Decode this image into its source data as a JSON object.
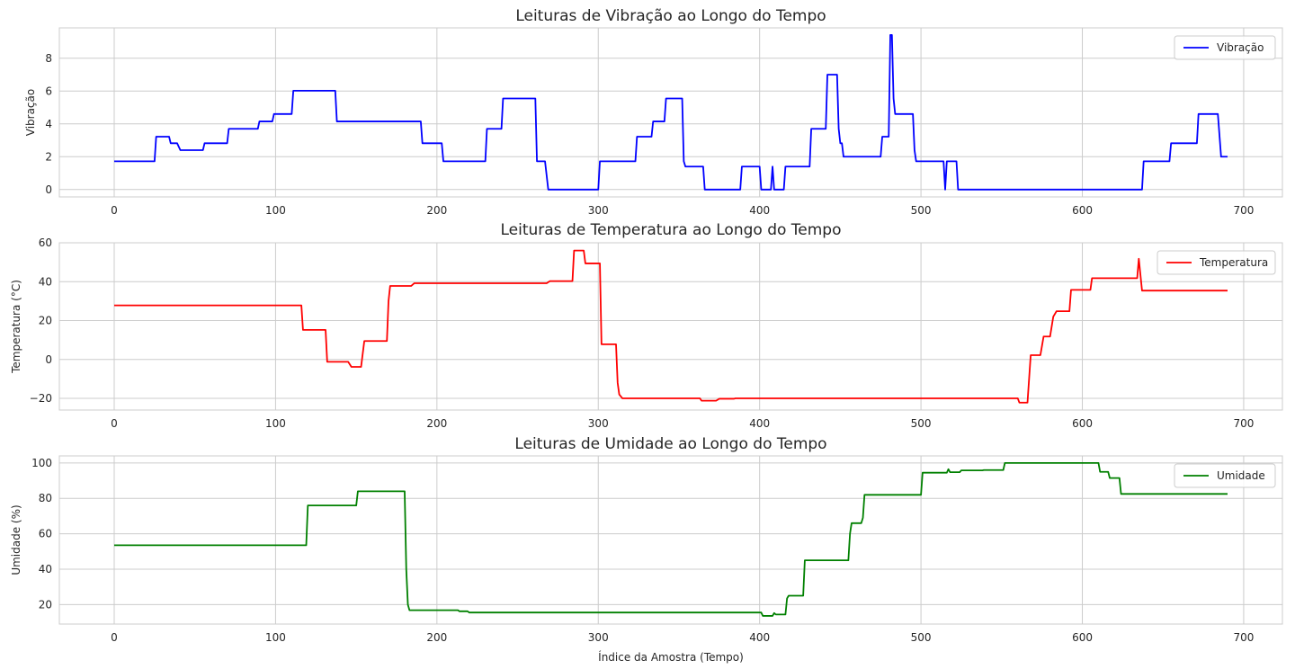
{
  "chart_data": [
    {
      "type": "line",
      "title": "Leituras de Vibração ao Longo do Tempo",
      "xlabel": "",
      "ylabel": "Vibração",
      "xlim": [
        -34,
        724
      ],
      "ylim": [
        -0.45,
        9.85
      ],
      "xticks": [
        0,
        100,
        200,
        300,
        400,
        500,
        600,
        700
      ],
      "yticks": [
        0,
        2,
        4,
        6,
        8
      ],
      "grid": true,
      "legend_position": "top-right",
      "series": [
        {
          "name": "Vibração",
          "color": "#0000ff",
          "points": [
            [
              0,
              1.72
            ],
            [
              25,
              1.72
            ],
            [
              26,
              3.22
            ],
            [
              34,
              3.22
            ],
            [
              35,
              2.82
            ],
            [
              39,
              2.82
            ],
            [
              41,
              2.4
            ],
            [
              55,
              2.4
            ],
            [
              56,
              2.82
            ],
            [
              70,
              2.82
            ],
            [
              71,
              3.7
            ],
            [
              89,
              3.7
            ],
            [
              90,
              4.15
            ],
            [
              98,
              4.15
            ],
            [
              99,
              4.6
            ],
            [
              110,
              4.6
            ],
            [
              111,
              6.02
            ],
            [
              137,
              6.02
            ],
            [
              138,
              4.15
            ],
            [
              190,
              4.15
            ],
            [
              191,
              2.82
            ],
            [
              203,
              2.82
            ],
            [
              204,
              1.72
            ],
            [
              230,
              1.72
            ],
            [
              231,
              3.7
            ],
            [
              240,
              3.7
            ],
            [
              241,
              5.55
            ],
            [
              261,
              5.55
            ],
            [
              262,
              1.72
            ],
            [
              267,
              1.72
            ],
            [
              269,
              0
            ],
            [
              300,
              0
            ],
            [
              301,
              1.72
            ],
            [
              323,
              1.72
            ],
            [
              324,
              3.22
            ],
            [
              333,
              3.22
            ],
            [
              334,
              4.15
            ],
            [
              341,
              4.15
            ],
            [
              342,
              5.55
            ],
            [
              352,
              5.55
            ],
            [
              353,
              1.72
            ],
            [
              354,
              1.4
            ],
            [
              365,
              1.4
            ],
            [
              366,
              0
            ],
            [
              388,
              0
            ],
            [
              389,
              1.4
            ],
            [
              400,
              1.4
            ],
            [
              401,
              0
            ],
            [
              407,
              0
            ],
            [
              408,
              1.4
            ],
            [
              409,
              0
            ],
            [
              415,
              0
            ],
            [
              416,
              1.4
            ],
            [
              431,
              1.4
            ],
            [
              432,
              3.7
            ],
            [
              441,
              3.7
            ],
            [
              442,
              7.0
            ],
            [
              448,
              7.0
            ],
            [
              449,
              3.7
            ],
            [
              450,
              2.82
            ],
            [
              451,
              2.82
            ],
            [
              452,
              2.0
            ],
            [
              475,
              2.0
            ],
            [
              476,
              3.22
            ],
            [
              480,
              3.22
            ],
            [
              481,
              9.42
            ],
            [
              482,
              9.42
            ],
            [
              483,
              5.55
            ],
            [
              484,
              4.6
            ],
            [
              495,
              4.6
            ],
            [
              496,
              2.4
            ],
            [
              497,
              1.72
            ],
            [
              514,
              1.72
            ],
            [
              515,
              0
            ],
            [
              516,
              1.72
            ],
            [
              522,
              1.72
            ],
            [
              523,
              0
            ],
            [
              637,
              0
            ],
            [
              638,
              1.72
            ],
            [
              654,
              1.72
            ],
            [
              655,
              2.82
            ],
            [
              671,
              2.82
            ],
            [
              672,
              4.6
            ],
            [
              684,
              4.6
            ],
            [
              686,
              2.0
            ],
            [
              690,
              2.0
            ]
          ]
        }
      ]
    },
    {
      "type": "line",
      "title": "Leituras de Temperatura ao Longo do Tempo",
      "xlabel": "",
      "ylabel": "Temperatura (°C)",
      "xlim": [
        -34,
        724
      ],
      "ylim": [
        -26,
        60
      ],
      "xticks": [
        0,
        100,
        200,
        300,
        400,
        500,
        600,
        700
      ],
      "yticks": [
        -20,
        0,
        20,
        40,
        60
      ],
      "grid": true,
      "legend_position": "top-right",
      "series": [
        {
          "name": "Temperatura",
          "color": "#ff0000",
          "points": [
            [
              0,
              27.8
            ],
            [
              116,
              27.8
            ],
            [
              117,
              15.2
            ],
            [
              131,
              15.2
            ],
            [
              132,
              -1.2
            ],
            [
              145,
              -1.2
            ],
            [
              147,
              -3.8
            ],
            [
              153,
              -3.8
            ],
            [
              155,
              9.5
            ],
            [
              169,
              9.5
            ],
            [
              170,
              30
            ],
            [
              171,
              37.8
            ],
            [
              184,
              37.8
            ],
            [
              186,
              39.2
            ],
            [
              268,
              39.2
            ],
            [
              270,
              40.3
            ],
            [
              284,
              40.3
            ],
            [
              285,
              56
            ],
            [
              291,
              56
            ],
            [
              292,
              49.4
            ],
            [
              301,
              49.4
            ],
            [
              302,
              7.8
            ],
            [
              311,
              7.8
            ],
            [
              312,
              -12
            ],
            [
              313,
              -18
            ],
            [
              315,
              -20
            ],
            [
              363,
              -20
            ],
            [
              364,
              -21.2
            ],
            [
              373,
              -21.2
            ],
            [
              375,
              -20.2
            ],
            [
              384,
              -20.2
            ],
            [
              385,
              -20
            ],
            [
              560,
              -20
            ],
            [
              561,
              -22.2
            ],
            [
              566,
              -22.2
            ],
            [
              568,
              2.2
            ],
            [
              574,
              2.2
            ],
            [
              576,
              11.8
            ],
            [
              580,
              11.8
            ],
            [
              582,
              22
            ],
            [
              584,
              24.8
            ],
            [
              592,
              24.8
            ],
            [
              593,
              35.8
            ],
            [
              605,
              35.8
            ],
            [
              606,
              41.8
            ],
            [
              634,
              41.8
            ],
            [
              635,
              51.8
            ],
            [
              637,
              35.4
            ],
            [
              690,
              35.4
            ]
          ]
        }
      ]
    },
    {
      "type": "line",
      "title": "Leituras de Umidade ao Longo do Tempo",
      "xlabel": "Índice da Amostra (Tempo)",
      "ylabel": "Umidade (%)",
      "xlim": [
        -34,
        724
      ],
      "ylim": [
        9,
        104
      ],
      "xticks": [
        0,
        100,
        200,
        300,
        400,
        500,
        600,
        700
      ],
      "yticks": [
        20,
        40,
        60,
        80,
        100
      ],
      "grid": true,
      "legend_position": "top-right",
      "series": [
        {
          "name": "Umidade",
          "color": "#008000",
          "points": [
            [
              0,
              53.5
            ],
            [
              119,
              53.5
            ],
            [
              120,
              76
            ],
            [
              150,
              76
            ],
            [
              151,
              84
            ],
            [
              180,
              84
            ],
            [
              181,
              40
            ],
            [
              182,
              20
            ],
            [
              183,
              16.8
            ],
            [
              213,
              16.8
            ],
            [
              214,
              16.2
            ],
            [
              219,
              16.2
            ],
            [
              220,
              15.5
            ],
            [
              401,
              15.5
            ],
            [
              402,
              13.6
            ],
            [
              408,
              13.6
            ],
            [
              409,
              15.2
            ],
            [
              410,
              14.4
            ],
            [
              416,
              14.4
            ],
            [
              417,
              23.5
            ],
            [
              418,
              25
            ],
            [
              427,
              25
            ],
            [
              428,
              45
            ],
            [
              455,
              45
            ],
            [
              456,
              60
            ],
            [
              457,
              66
            ],
            [
              463,
              66
            ],
            [
              464,
              69
            ],
            [
              465,
              82
            ],
            [
              500,
              82
            ],
            [
              501,
              94.5
            ],
            [
              516,
              94.5
            ],
            [
              517,
              96.5
            ],
            [
              518,
              94.8
            ],
            [
              524,
              94.8
            ],
            [
              525,
              95.8
            ],
            [
              538,
              95.8
            ],
            [
              539,
              96
            ],
            [
              551,
              96
            ],
            [
              552,
              100
            ],
            [
              610,
              100
            ],
            [
              611,
              95
            ],
            [
              616,
              95
            ],
            [
              617,
              91.5
            ],
            [
              623,
              91.5
            ],
            [
              624,
              82.5
            ],
            [
              690,
              82.5
            ]
          ]
        }
      ]
    }
  ]
}
